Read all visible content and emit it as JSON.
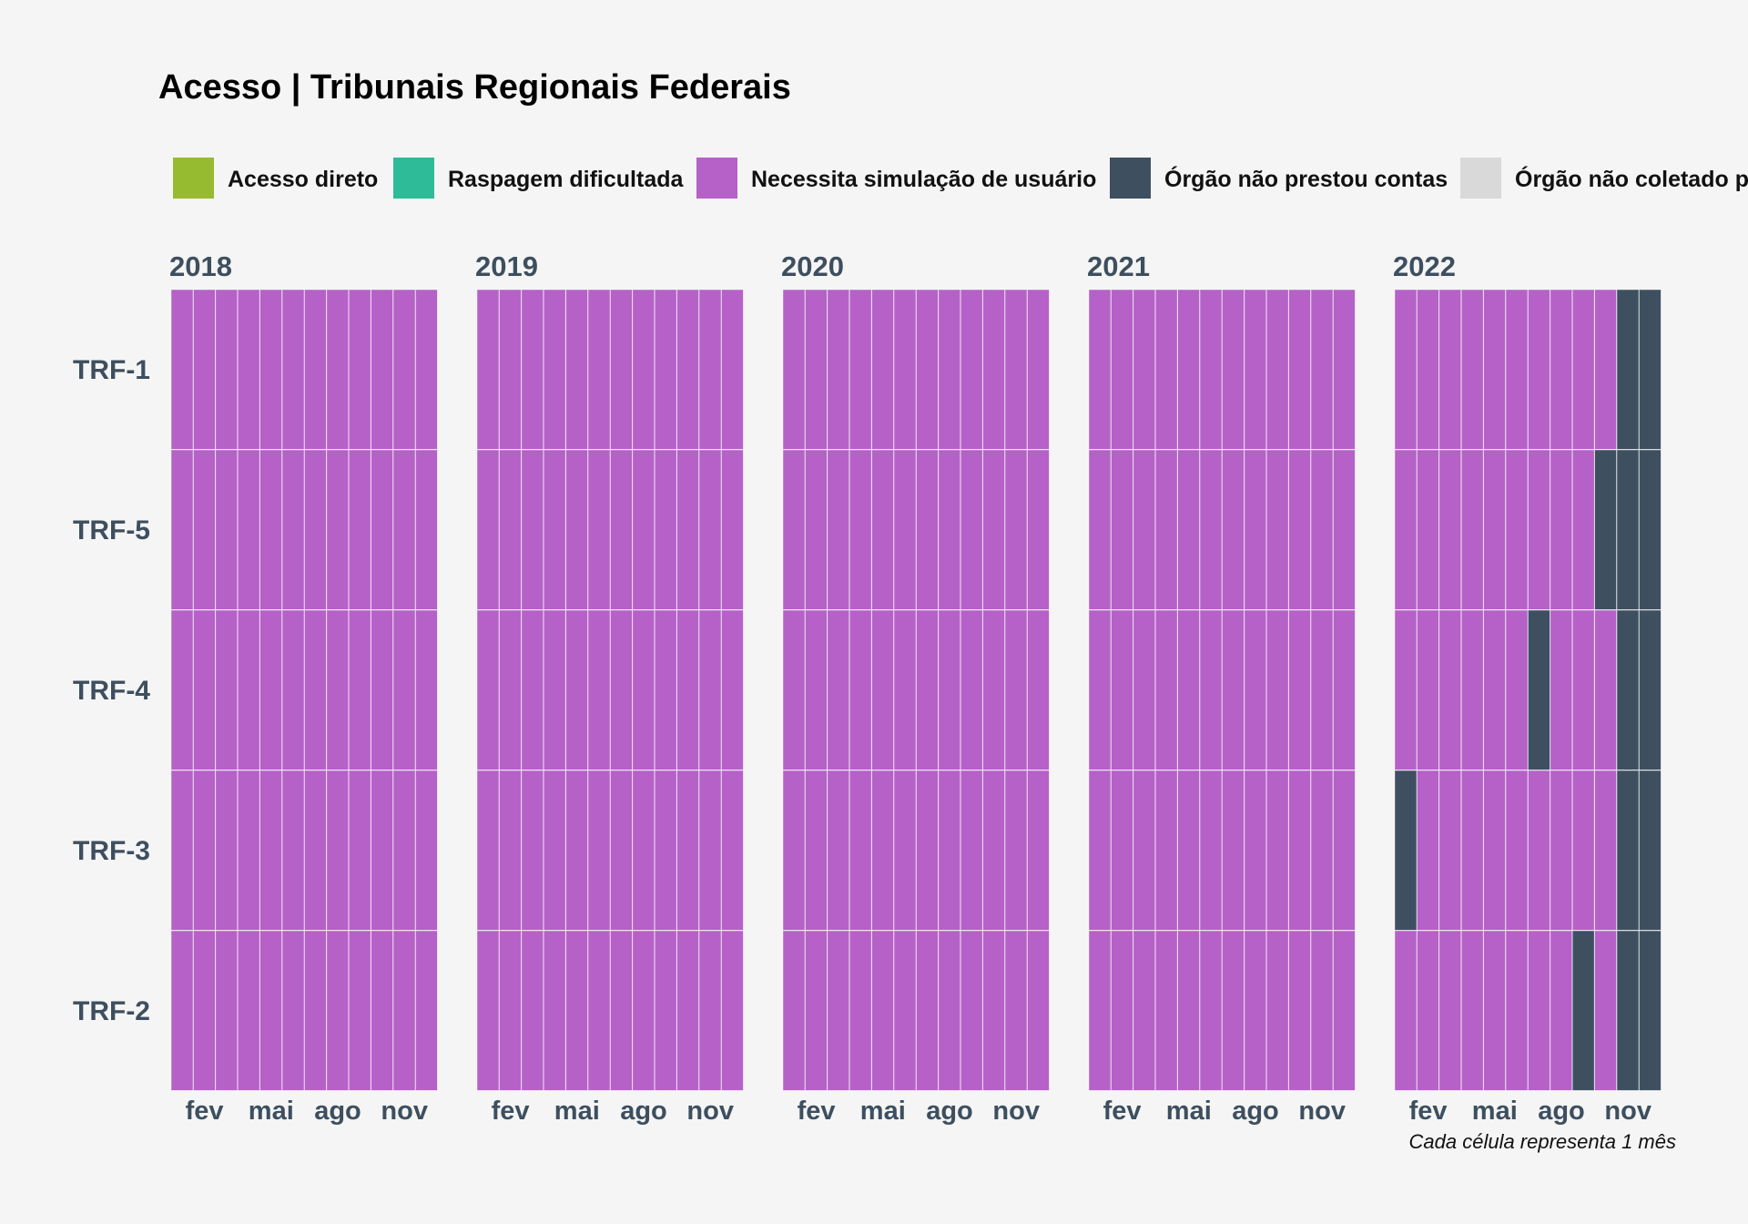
{
  "chart_data": {
    "type": "heatmap",
    "title": "Acesso | Tribunais Regionais Federais",
    "caption": "Cada célula representa 1 mês",
    "legend": {
      "position": "top",
      "entries": [
        {
          "key": "direto",
          "label": "Acesso direto",
          "color": "#97bb30"
        },
        {
          "key": "raspagem",
          "label": "Raspagem dificultada",
          "color": "#2ebb97"
        },
        {
          "key": "simulacao",
          "label": "Necessita simulação de usuário",
          "color": "#b561c8"
        },
        {
          "key": "nao_prestou",
          "label": "Órgão não prestou contas",
          "color": "#3e5060"
        },
        {
          "key": "nao_coletado",
          "label": "Órgão não coletado p",
          "color": "#d9d9d9"
        }
      ]
    },
    "years": [
      "2018",
      "2019",
      "2020",
      "2021",
      "2022"
    ],
    "rows": [
      "TRF-1",
      "TRF-5",
      "TRF-4",
      "TRF-3",
      "TRF-2"
    ],
    "month_ticks": [
      {
        "month": 2,
        "label": "fev"
      },
      {
        "month": 5,
        "label": "mai"
      },
      {
        "month": 8,
        "label": "ago"
      },
      {
        "month": 11,
        "label": "nov"
      }
    ],
    "default_status": "simulacao",
    "exceptions": [
      {
        "row": "TRF-1",
        "year": "2022",
        "months": [
          11,
          12
        ],
        "status": "nao_prestou"
      },
      {
        "row": "TRF-5",
        "year": "2022",
        "months": [
          10,
          11,
          12
        ],
        "status": "nao_prestou"
      },
      {
        "row": "TRF-4",
        "year": "2022",
        "months": [
          7,
          11,
          12
        ],
        "status": "nao_prestou"
      },
      {
        "row": "TRF-3",
        "year": "2022",
        "months": [
          1,
          11,
          12
        ],
        "status": "nao_prestou"
      },
      {
        "row": "TRF-2",
        "year": "2022",
        "months": [
          9,
          11,
          12
        ],
        "status": "nao_prestou"
      }
    ]
  }
}
